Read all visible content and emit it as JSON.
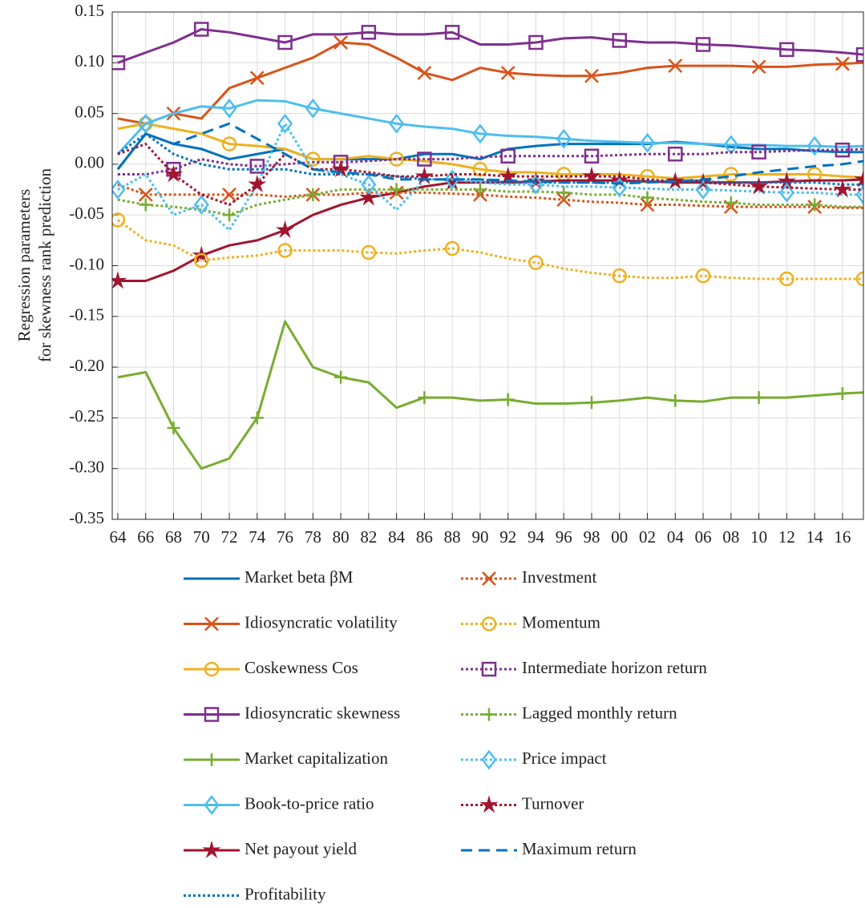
{
  "chart_data": {
    "type": "line",
    "y_label": [
      "Regression parameters",
      "for skewness rank prediction"
    ],
    "x": [
      1964,
      1966,
      1968,
      1970,
      1972,
      1974,
      1976,
      1978,
      1980,
      1982,
      1984,
      1986,
      1988,
      1990,
      1992,
      1994,
      1996,
      1998,
      2000,
      2002,
      2004,
      2006,
      2008,
      2010,
      2012,
      2014,
      2016,
      2017.5
    ],
    "xlim": [
      1963.6,
      2017.5
    ],
    "xticks": [
      {
        "value": 1964,
        "label": "64"
      },
      {
        "value": 1966,
        "label": "66"
      },
      {
        "value": 1968,
        "label": "68"
      },
      {
        "value": 1970,
        "label": "70"
      },
      {
        "value": 1972,
        "label": "72"
      },
      {
        "value": 1974,
        "label": "74"
      },
      {
        "value": 1976,
        "label": "76"
      },
      {
        "value": 1978,
        "label": "78"
      },
      {
        "value": 1980,
        "label": "80"
      },
      {
        "value": 1982,
        "label": "82"
      },
      {
        "value": 1984,
        "label": "84"
      },
      {
        "value": 1986,
        "label": "86"
      },
      {
        "value": 1988,
        "label": "88"
      },
      {
        "value": 1990,
        "label": "90"
      },
      {
        "value": 1992,
        "label": "92"
      },
      {
        "value": 1994,
        "label": "94"
      },
      {
        "value": 1996,
        "label": "96"
      },
      {
        "value": 1998,
        "label": "98"
      },
      {
        "value": 2000,
        "label": "00"
      },
      {
        "value": 2002,
        "label": "02"
      },
      {
        "value": 2004,
        "label": "04"
      },
      {
        "value": 2006,
        "label": "06"
      },
      {
        "value": 2008,
        "label": "08"
      },
      {
        "value": 2010,
        "label": "10"
      },
      {
        "value": 2012,
        "label": "12"
      },
      {
        "value": 2014,
        "label": "14"
      },
      {
        "value": 2016,
        "label": "16"
      }
    ],
    "ylim": [
      -0.35,
      0.15
    ],
    "yticks": [
      {
        "value": -0.35,
        "label": "-0.35"
      },
      {
        "value": -0.3,
        "label": "-0.30"
      },
      {
        "value": -0.25,
        "label": "-0.25"
      },
      {
        "value": -0.2,
        "label": "-0.20"
      },
      {
        "value": -0.15,
        "label": "-0.15"
      },
      {
        "value": -0.1,
        "label": "-0.10"
      },
      {
        "value": -0.05,
        "label": "-0.05"
      },
      {
        "value": 0,
        "label": "0.00"
      },
      {
        "value": 0.05,
        "label": "0.05"
      },
      {
        "value": 0.1,
        "label": "0.10"
      },
      {
        "value": 0.15,
        "label": "0.15"
      }
    ],
    "grid": true,
    "series": [
      {
        "name": "Market beta βM",
        "color": "#0072BD",
        "dash": "solid",
        "marker": "none",
        "values": [
          -0.005,
          0.03,
          0.02,
          0.015,
          0.005,
          0.01,
          0.015,
          0.005,
          0.005,
          0.005,
          0.005,
          0.01,
          0.01,
          0.005,
          0.015,
          0.018,
          0.02,
          0.02,
          0.02,
          0.02,
          0.022,
          0.02,
          0.017,
          0.015,
          0.015,
          0.013,
          0.012,
          0.012
        ]
      },
      {
        "name": "Idiosyncratic volatility",
        "color": "#D95319",
        "dash": "solid",
        "marker": "x",
        "values": [
          0.045,
          0.04,
          0.05,
          0.045,
          0.075,
          0.085,
          0.095,
          0.105,
          0.12,
          0.118,
          0.105,
          0.09,
          0.083,
          0.095,
          0.09,
          0.088,
          0.087,
          0.087,
          0.09,
          0.095,
          0.097,
          0.097,
          0.097,
          0.096,
          0.096,
          0.098,
          0.099,
          0.1
        ]
      },
      {
        "name": "Coskewness Cos",
        "color": "#EDB120",
        "dash": "solid",
        "marker": "circle",
        "values": [
          0.035,
          0.04,
          0.035,
          0.03,
          0.02,
          0.018,
          0.015,
          0.005,
          0.005,
          0.008,
          0.005,
          0.003,
          0.0,
          -0.005,
          -0.008,
          -0.008,
          -0.01,
          -0.01,
          -0.01,
          -0.012,
          -0.014,
          -0.012,
          -0.01,
          -0.01,
          -0.01,
          -0.01,
          -0.012,
          -0.013
        ]
      },
      {
        "name": "Idiosyncratic skewness",
        "color": "#7E2F8E",
        "dash": "solid",
        "marker": "square",
        "values": [
          0.1,
          0.11,
          0.12,
          0.133,
          0.13,
          0.125,
          0.12,
          0.128,
          0.128,
          0.13,
          0.128,
          0.128,
          0.13,
          0.118,
          0.118,
          0.12,
          0.124,
          0.125,
          0.122,
          0.12,
          0.12,
          0.118,
          0.117,
          0.115,
          0.113,
          0.112,
          0.11,
          0.108
        ]
      },
      {
        "name": "Market capitalization",
        "color": "#77AC30",
        "dash": "solid",
        "marker": "plus",
        "values": [
          -0.21,
          -0.205,
          -0.26,
          -0.3,
          -0.29,
          -0.25,
          -0.155,
          -0.2,
          -0.21,
          -0.215,
          -0.24,
          -0.23,
          -0.23,
          -0.233,
          -0.232,
          -0.236,
          -0.236,
          -0.235,
          -0.233,
          -0.23,
          -0.233,
          -0.234,
          -0.23,
          -0.23,
          -0.23,
          -0.228,
          -0.226,
          -0.225
        ]
      },
      {
        "name": "Book-to-price ratio",
        "color": "#4DBEEE",
        "dash": "solid",
        "marker": "diamond",
        "values": [
          0.01,
          0.04,
          0.05,
          0.057,
          0.055,
          0.063,
          0.062,
          0.055,
          0.05,
          0.045,
          0.04,
          0.037,
          0.035,
          0.03,
          0.028,
          0.027,
          0.025,
          0.023,
          0.022,
          0.021,
          0.021,
          0.02,
          0.019,
          0.019,
          0.018,
          0.018,
          0.017,
          0.018
        ]
      },
      {
        "name": "Net payout yield",
        "color": "#A2142F",
        "dash": "solid",
        "marker": "star",
        "values": [
          -0.115,
          -0.115,
          -0.105,
          -0.09,
          -0.08,
          -0.075,
          -0.065,
          -0.05,
          -0.04,
          -0.033,
          -0.028,
          -0.022,
          -0.018,
          -0.018,
          -0.018,
          -0.017,
          -0.016,
          -0.016,
          -0.016,
          -0.017,
          -0.018,
          -0.018,
          -0.018,
          -0.018,
          -0.017,
          -0.016,
          -0.016,
          -0.015
        ]
      },
      {
        "name": "Profitability",
        "color": "#0072BD",
        "dash": "dotted",
        "marker": "none",
        "values": [
          0.01,
          0.03,
          0.01,
          0.0,
          -0.005,
          -0.005,
          -0.005,
          -0.01,
          -0.01,
          -0.01,
          -0.012,
          -0.015,
          -0.015,
          -0.015,
          -0.018,
          -0.018,
          -0.018,
          -0.018,
          -0.018,
          -0.017,
          -0.017,
          -0.017,
          -0.018,
          -0.018,
          -0.018,
          -0.018,
          -0.02,
          -0.02
        ]
      },
      {
        "name": "Investment",
        "color": "#D95319",
        "dash": "dotted",
        "marker": "x",
        "values": [
          -0.02,
          -0.03,
          -0.03,
          -0.03,
          -0.03,
          -0.03,
          -0.032,
          -0.03,
          -0.03,
          -0.028,
          -0.028,
          -0.028,
          -0.029,
          -0.03,
          -0.032,
          -0.033,
          -0.035,
          -0.037,
          -0.038,
          -0.04,
          -0.04,
          -0.041,
          -0.042,
          -0.042,
          -0.042,
          -0.042,
          -0.043,
          -0.043
        ]
      },
      {
        "name": "Momentum",
        "color": "#EDB120",
        "dash": "dotted",
        "marker": "circle",
        "values": [
          -0.055,
          -0.075,
          -0.08,
          -0.095,
          -0.092,
          -0.09,
          -0.085,
          -0.085,
          -0.085,
          -0.087,
          -0.088,
          -0.085,
          -0.083,
          -0.087,
          -0.093,
          -0.097,
          -0.103,
          -0.107,
          -0.11,
          -0.112,
          -0.112,
          -0.11,
          -0.112,
          -0.113,
          -0.113,
          -0.113,
          -0.113,
          -0.113
        ]
      },
      {
        "name": "Intermediate horizon return",
        "color": "#7E2F8E",
        "dash": "dotted",
        "marker": "square",
        "values": [
          -0.01,
          -0.01,
          -0.005,
          0.005,
          0.0,
          -0.002,
          0.0,
          0.002,
          0.002,
          0.003,
          0.005,
          0.005,
          0.005,
          0.007,
          0.008,
          0.008,
          0.008,
          0.008,
          0.009,
          0.01,
          0.01,
          0.01,
          0.012,
          0.012,
          0.013,
          0.014,
          0.014,
          0.015
        ]
      },
      {
        "name": "Lagged monthly return",
        "color": "#77AC30",
        "dash": "dotted",
        "marker": "plus",
        "values": [
          -0.035,
          -0.04,
          -0.042,
          -0.045,
          -0.05,
          -0.04,
          -0.035,
          -0.03,
          -0.025,
          -0.025,
          -0.025,
          -0.025,
          -0.025,
          -0.025,
          -0.027,
          -0.027,
          -0.028,
          -0.03,
          -0.03,
          -0.033,
          -0.035,
          -0.037,
          -0.038,
          -0.04,
          -0.04,
          -0.04,
          -0.042,
          -0.042
        ]
      },
      {
        "name": "Price impact",
        "color": "#4DBEEE",
        "dash": "dotted",
        "marker": "diamond",
        "values": [
          -0.025,
          -0.01,
          -0.05,
          -0.04,
          -0.065,
          -0.02,
          0.04,
          -0.005,
          -0.01,
          -0.02,
          -0.045,
          -0.015,
          -0.015,
          -0.018,
          -0.02,
          -0.02,
          -0.022,
          -0.022,
          -0.023,
          -0.024,
          -0.025,
          -0.025,
          -0.026,
          -0.027,
          -0.028,
          -0.028,
          -0.03,
          -0.03
        ]
      },
      {
        "name": "Turnover",
        "color": "#A2142F",
        "dash": "dotted",
        "marker": "star",
        "values": [
          0.01,
          0.02,
          -0.01,
          -0.03,
          -0.04,
          -0.02,
          0.01,
          -0.005,
          -0.005,
          -0.008,
          -0.012,
          -0.012,
          -0.01,
          -0.01,
          -0.012,
          -0.012,
          -0.012,
          -0.012,
          -0.012,
          -0.015,
          -0.017,
          -0.018,
          -0.02,
          -0.022,
          -0.023,
          -0.024,
          -0.025,
          -0.025
        ]
      },
      {
        "name": "Maximum return",
        "color": "#0072BD",
        "dash": "dashed",
        "marker": "none",
        "values": [
          -0.005,
          0.03,
          0.02,
          0.03,
          0.04,
          0.025,
          0.01,
          -0.005,
          -0.008,
          -0.01,
          -0.015,
          -0.015,
          -0.015,
          -0.015,
          -0.016,
          -0.017,
          -0.018,
          -0.018,
          -0.019,
          -0.018,
          -0.017,
          -0.015,
          -0.012,
          -0.008,
          -0.005,
          -0.002,
          0.0,
          0.003
        ]
      }
    ]
  }
}
